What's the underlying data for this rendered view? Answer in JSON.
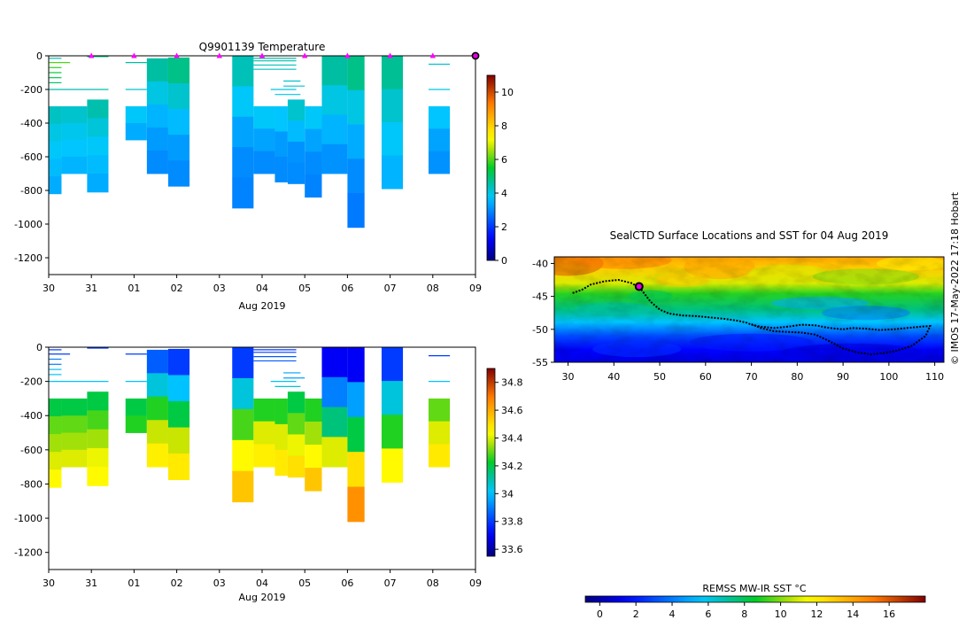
{
  "charts": [
    {
      "id": "temp",
      "type": "heatmap",
      "title": "Q9901139  Temperature",
      "xlabel": "Aug 2019",
      "x_ticks": [
        "30",
        "31",
        "01",
        "02",
        "03",
        "04",
        "05",
        "06",
        "07",
        "08",
        "09"
      ],
      "y_ticks": [
        "0",
        "-200",
        "-400",
        "-600",
        "-800",
        "-1000",
        "-1200"
      ],
      "colorbar_ticks": [
        "0",
        "2",
        "4",
        "6",
        "8",
        "10"
      ],
      "colorbar_range": [
        0,
        11
      ]
    },
    {
      "id": "sal",
      "type": "heatmap",
      "title": "",
      "xlabel": "Aug 2019",
      "x_ticks": [
        "30",
        "31",
        "01",
        "02",
        "03",
        "04",
        "05",
        "06",
        "07",
        "08",
        "09"
      ],
      "y_ticks": [
        "0",
        "-200",
        "-400",
        "-600",
        "-800",
        "-1000",
        "-1200"
      ],
      "colorbar_ticks": [
        "33.6",
        "33.8",
        "34",
        "34.2",
        "34.4",
        "34.6",
        "34.8"
      ],
      "colorbar_range": [
        33.55,
        34.9
      ]
    }
  ],
  "chart_data": {
    "type": "heatmap",
    "x_range_days": [
      0,
      10
    ],
    "y_range_dbar": [
      -1300,
      0
    ],
    "surface_markers_day": [
      1,
      2,
      3,
      4,
      5,
      6,
      7,
      8,
      9,
      10
    ],
    "latest_marker_day": 10,
    "profiles": [
      {
        "x0": 0.0,
        "x1": 0.3,
        "top": 300,
        "bottom": 820,
        "temp": [
          4.3,
          4.0,
          3.8,
          3.6,
          3.4
        ],
        "sal": [
          34.2,
          34.3,
          34.35,
          34.4,
          34.45
        ]
      },
      {
        "x0": 0.3,
        "x1": 0.9,
        "top": 300,
        "bottom": 700,
        "temp": [
          4.2,
          3.9,
          3.7,
          3.5
        ],
        "sal": [
          34.2,
          34.3,
          34.35,
          34.4
        ]
      },
      {
        "x0": 0.9,
        "x1": 1.4,
        "top": 260,
        "bottom": 810,
        "temp": [
          4.5,
          4.1,
          3.8,
          3.6,
          3.4
        ],
        "sal": [
          34.2,
          34.28,
          34.35,
          34.42,
          34.45
        ]
      },
      {
        "x0": 1.8,
        "x1": 2.3,
        "top": 300,
        "bottom": 500,
        "temp": [
          3.8,
          3.4
        ],
        "sal": [
          34.2,
          34.25
        ]
      },
      {
        "x0": 2.3,
        "x1": 2.8,
        "top": 15,
        "bottom": 700,
        "temp": [
          4.6,
          4.0,
          3.5,
          3.2,
          3.0
        ],
        "sal": [
          33.85,
          34.05,
          34.25,
          34.38,
          34.47
        ]
      },
      {
        "x0": 2.8,
        "x1": 3.3,
        "top": 10,
        "bottom": 775,
        "temp": [
          4.8,
          4.2,
          3.6,
          3.2,
          3.0
        ],
        "sal": [
          33.8,
          34.0,
          34.2,
          34.38,
          34.48
        ]
      },
      {
        "x0": 4.3,
        "x1": 4.8,
        "top": 0,
        "bottom": 905,
        "temp": [
          4.4,
          3.8,
          3.3,
          3.0,
          2.9
        ],
        "sal": [
          33.8,
          34.05,
          34.28,
          34.45,
          34.55
        ]
      },
      {
        "x0": 4.8,
        "x1": 5.3,
        "top": 300,
        "bottom": 700,
        "temp": [
          3.8,
          3.3,
          3.0
        ],
        "sal": [
          34.25,
          34.4,
          34.47
        ]
      },
      {
        "x0": 5.3,
        "x1": 5.6,
        "top": 300,
        "bottom": 750,
        "temp": [
          3.7,
          3.2,
          3.0
        ],
        "sal": [
          34.25,
          34.4,
          34.48
        ]
      },
      {
        "x0": 5.6,
        "x1": 6.0,
        "top": 260,
        "bottom": 760,
        "temp": [
          4.2,
          3.6,
          3.1,
          3.0
        ],
        "sal": [
          34.2,
          34.3,
          34.42,
          34.5
        ]
      },
      {
        "x0": 6.0,
        "x1": 6.4,
        "top": 300,
        "bottom": 840,
        "temp": [
          3.8,
          3.3,
          3.0,
          2.9
        ],
        "sal": [
          34.25,
          34.35,
          34.45,
          34.55
        ]
      },
      {
        "x0": 6.4,
        "x1": 7.0,
        "top": 0,
        "bottom": 700,
        "temp": [
          4.6,
          4.0,
          3.5,
          3.1
        ],
        "sal": [
          33.7,
          33.9,
          34.15,
          34.4
        ]
      },
      {
        "x0": 7.0,
        "x1": 7.4,
        "top": 0,
        "bottom": 1020,
        "temp": [
          4.8,
          4.0,
          3.4,
          3.0,
          2.8
        ],
        "sal": [
          33.7,
          33.95,
          34.2,
          34.5,
          34.65
        ]
      },
      {
        "x0": 7.8,
        "x1": 8.3,
        "top": 0,
        "bottom": 790,
        "temp": [
          4.7,
          4.2,
          3.8,
          3.5
        ],
        "sal": [
          33.8,
          34.05,
          34.25,
          34.45
        ]
      },
      {
        "x0": 8.9,
        "x1": 9.4,
        "top": 300,
        "bottom": 700,
        "temp": [
          3.7,
          3.3,
          3.1
        ],
        "sal": [
          34.3,
          34.4,
          34.48
        ]
      }
    ],
    "surface_lines": [
      {
        "x0": 0.0,
        "x1": 0.3,
        "depth": 15,
        "temp": 4.5,
        "sal": 33.8
      },
      {
        "x0": 0.0,
        "x1": 0.5,
        "depth": 40,
        "temp": 6.0,
        "sal": 33.8
      },
      {
        "x0": 0.0,
        "x1": 0.3,
        "depth": 70,
        "temp": 5.8,
        "sal": 33.9
      },
      {
        "x0": 0.0,
        "x1": 0.3,
        "depth": 100,
        "temp": 5.4,
        "sal": 33.9
      },
      {
        "x0": 0.0,
        "x1": 0.3,
        "depth": 130,
        "temp": 5.2,
        "sal": 34.0
      },
      {
        "x0": 0.0,
        "x1": 0.3,
        "depth": 160,
        "temp": 5.0,
        "sal": 34.0
      },
      {
        "x0": 0.0,
        "x1": 1.4,
        "depth": 200,
        "temp": 4.5,
        "sal": 34.0
      },
      {
        "x0": 0.9,
        "x1": 1.4,
        "depth": 5,
        "temp": 4.8,
        "sal": 33.8
      },
      {
        "x0": 1.8,
        "x1": 2.3,
        "depth": 40,
        "temp": 4.6,
        "sal": 33.8
      },
      {
        "x0": 1.8,
        "x1": 2.3,
        "depth": 200,
        "temp": 4.2,
        "sal": 34.0
      },
      {
        "x0": 4.8,
        "x1": 5.8,
        "depth": 15,
        "temp": 4.6,
        "sal": 33.8
      },
      {
        "x0": 4.8,
        "x1": 5.8,
        "depth": 30,
        "temp": 4.5,
        "sal": 33.8
      },
      {
        "x0": 4.8,
        "x1": 5.8,
        "depth": 55,
        "temp": 4.4,
        "sal": 33.85
      },
      {
        "x0": 4.8,
        "x1": 5.8,
        "depth": 80,
        "temp": 4.3,
        "sal": 33.85
      },
      {
        "x0": 5.5,
        "x1": 5.9,
        "depth": 150,
        "temp": 4.2,
        "sal": 33.95
      },
      {
        "x0": 5.5,
        "x1": 6.0,
        "depth": 180,
        "temp": 4.1,
        "sal": 33.95
      },
      {
        "x0": 5.2,
        "x1": 5.8,
        "depth": 200,
        "temp": 4.0,
        "sal": 34.0
      },
      {
        "x0": 5.3,
        "x1": 5.9,
        "depth": 230,
        "temp": 3.9,
        "sal": 34.05
      },
      {
        "x0": 8.9,
        "x1": 9.4,
        "depth": 50,
        "temp": 4.2,
        "sal": 33.8
      },
      {
        "x0": 8.9,
        "x1": 9.4,
        "depth": 200,
        "temp": 4.0,
        "sal": 34.0
      }
    ],
    "map": {
      "title": "SealCTD Surface Locations and SST for 04 Aug 2019",
      "lon_ticks": [
        "30",
        "40",
        "50",
        "60",
        "70",
        "80",
        "90",
        "100",
        "110"
      ],
      "lat_ticks": [
        "-40",
        "-45",
        "-50",
        "-55"
      ],
      "lon_range": [
        27,
        112
      ],
      "lat_range": [
        -55,
        -39
      ],
      "colorbar_label": "REMSS MW-IR SST °C",
      "colorbar_ticks": [
        "0",
        "2",
        "4",
        "6",
        "8",
        "10",
        "12",
        "14",
        "16"
      ],
      "colorbar_range": [
        -0.8,
        18
      ],
      "credit": "© IMOS 17-May-2022 17:18 Hobart",
      "track_lon": [
        31,
        33,
        35,
        38,
        41,
        44,
        46,
        48,
        50,
        52,
        55,
        58,
        61,
        64,
        67,
        69,
        70,
        72,
        75,
        78,
        81,
        84,
        87,
        90,
        92,
        95,
        98,
        101,
        104,
        107,
        109,
        108,
        105,
        102,
        99,
        96,
        93,
        90,
        87,
        84,
        81,
        78,
        75,
        72,
        70
      ],
      "track_lat": [
        -44.5,
        -44.0,
        -43.2,
        -42.7,
        -42.5,
        -43.0,
        -44.0,
        -45.8,
        -47.0,
        -47.6,
        -47.9,
        -48.0,
        -48.2,
        -48.4,
        -48.7,
        -49.0,
        -49.3,
        -49.6,
        -49.8,
        -49.6,
        -49.3,
        -49.4,
        -49.8,
        -50.0,
        -49.8,
        -49.9,
        -50.1,
        -50.0,
        -49.8,
        -49.6,
        -49.5,
        -51.0,
        -52.5,
        -53.2,
        -53.6,
        -53.8,
        -53.5,
        -52.9,
        -51.8,
        -50.8,
        -50.5,
        -50.4,
        -50.3,
        -49.8,
        -49.2
      ],
      "latest_location": {
        "lon": 45.5,
        "lat": -43.5
      }
    }
  }
}
